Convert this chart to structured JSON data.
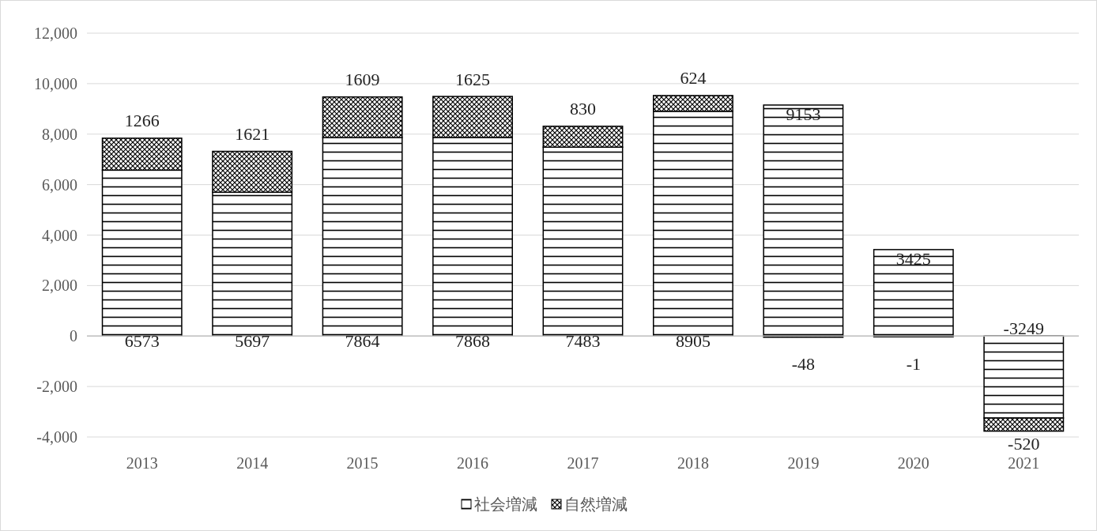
{
  "chart_data": {
    "type": "bar",
    "stacked": true,
    "categories": [
      "2013",
      "2014",
      "2015",
      "2016",
      "2017",
      "2018",
      "2019",
      "2020",
      "2021"
    ],
    "series": [
      {
        "name": "社会増減",
        "color": "#000000",
        "values": [
          6573,
          5697,
          7864,
          7868,
          7483,
          8905,
          9153,
          3425,
          -3249
        ]
      },
      {
        "name": "自然増減",
        "color": "#000000",
        "values": [
          1266,
          1621,
          1609,
          1625,
          830,
          624,
          -48,
          -1,
          -520
        ]
      }
    ],
    "ylim": [
      -4000,
      12000
    ],
    "yticks": [
      {
        "value": -4000,
        "label": "-4,000"
      },
      {
        "value": -2000,
        "label": "-2,000"
      },
      {
        "value": 0,
        "label": "0"
      },
      {
        "value": 2000,
        "label": "2,000"
      },
      {
        "value": 4000,
        "label": "4,000"
      },
      {
        "value": 6000,
        "label": "6,000"
      },
      {
        "value": 8000,
        "label": "8,000"
      },
      {
        "value": 10000,
        "label": "10,000"
      },
      {
        "value": 12000,
        "label": "12,000"
      }
    ],
    "grid": "y",
    "legend": "bottom",
    "data_labels": true
  }
}
